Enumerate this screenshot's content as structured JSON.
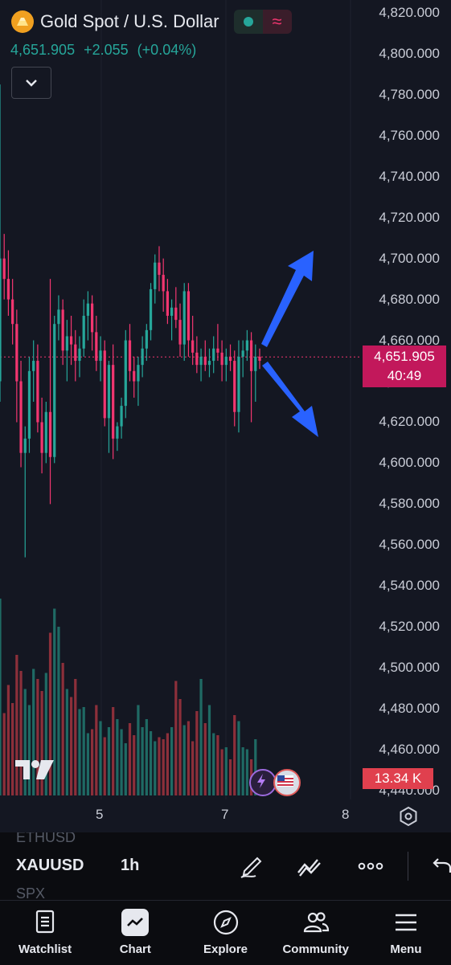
{
  "header": {
    "title": "Gold Spot / U.S. Dollar",
    "last_price": "4,651.905",
    "change": "+2.055",
    "change_pct": "(+0.04%)"
  },
  "price_axis": {
    "ticks": [
      "4,820.000",
      "4,800.000",
      "4,780.000",
      "4,760.000",
      "4,740.000",
      "4,720.000",
      "4,700.000",
      "4,680.000",
      "4,660.000",
      "4,640.000",
      "4,620.000",
      "4,600.000",
      "4,580.000",
      "4,560.000",
      "4,540.000",
      "4,520.000",
      "4,500.000",
      "4,480.000",
      "4,460.000",
      "4,440.000"
    ],
    "current_price": "4,651.905",
    "countdown": "40:49",
    "volume_label": "13.34 K"
  },
  "time_axis": {
    "ticks": [
      "5",
      "7",
      "8"
    ]
  },
  "toolbar": {
    "ghost_above": "ETHUSD",
    "symbol": "XAUUSD",
    "interval": "1h",
    "ghost_below": "SPX"
  },
  "nav": {
    "watchlist": "Watchlist",
    "chart": "Chart",
    "explore": "Explore",
    "community": "Community",
    "menu": "Menu"
  },
  "colors": {
    "up": "#26a69a",
    "down": "#f23670",
    "arrow": "#2962ff",
    "background": "#141722"
  },
  "chart_data": {
    "type": "candlestick",
    "ylim": [
      4440,
      4820
    ],
    "current_price": 4651.905,
    "candles": [
      {
        "o": 4640,
        "h": 4785,
        "l": 4630,
        "c": 4700
      },
      {
        "o": 4700,
        "h": 4712,
        "l": 4680,
        "c": 4690
      },
      {
        "o": 4690,
        "h": 4704,
        "l": 4672,
        "c": 4680
      },
      {
        "o": 4680,
        "h": 4690,
        "l": 4658,
        "c": 4668
      },
      {
        "o": 4668,
        "h": 4675,
        "l": 4620,
        "c": 4640
      },
      {
        "o": 4640,
        "h": 4650,
        "l": 4598,
        "c": 4605
      },
      {
        "o": 4605,
        "h": 4618,
        "l": 4554,
        "c": 4612
      },
      {
        "o": 4612,
        "h": 4652,
        "l": 4605,
        "c": 4645
      },
      {
        "o": 4645,
        "h": 4660,
        "l": 4630,
        "c": 4650
      },
      {
        "o": 4650,
        "h": 4658,
        "l": 4615,
        "c": 4620
      },
      {
        "o": 4620,
        "h": 4632,
        "l": 4595,
        "c": 4605
      },
      {
        "o": 4605,
        "h": 4630,
        "l": 4600,
        "c": 4625
      },
      {
        "o": 4625,
        "h": 4690,
        "l": 4580,
        "c": 4603
      },
      {
        "o": 4603,
        "h": 4672,
        "l": 4600,
        "c": 4668
      },
      {
        "o": 4668,
        "h": 4682,
        "l": 4660,
        "c": 4675
      },
      {
        "o": 4675,
        "h": 4680,
        "l": 4648,
        "c": 4655
      },
      {
        "o": 4655,
        "h": 4670,
        "l": 4640,
        "c": 4662
      },
      {
        "o": 4662,
        "h": 4672,
        "l": 4648,
        "c": 4658
      },
      {
        "o": 4658,
        "h": 4665,
        "l": 4640,
        "c": 4650
      },
      {
        "o": 4650,
        "h": 4662,
        "l": 4642,
        "c": 4656
      },
      {
        "o": 4656,
        "h": 4680,
        "l": 4652,
        "c": 4672
      },
      {
        "o": 4672,
        "h": 4684,
        "l": 4660,
        "c": 4678
      },
      {
        "o": 4678,
        "h": 4682,
        "l": 4655,
        "c": 4664
      },
      {
        "o": 4664,
        "h": 4672,
        "l": 4645,
        "c": 4650
      },
      {
        "o": 4650,
        "h": 4662,
        "l": 4640,
        "c": 4655
      },
      {
        "o": 4655,
        "h": 4660,
        "l": 4618,
        "c": 4622
      },
      {
        "o": 4622,
        "h": 4650,
        "l": 4605,
        "c": 4648
      },
      {
        "o": 4648,
        "h": 4658,
        "l": 4602,
        "c": 4612
      },
      {
        "o": 4612,
        "h": 4620,
        "l": 4606,
        "c": 4618
      },
      {
        "o": 4618,
        "h": 4632,
        "l": 4612,
        "c": 4628
      },
      {
        "o": 4628,
        "h": 4665,
        "l": 4622,
        "c": 4660
      },
      {
        "o": 4660,
        "h": 4668,
        "l": 4640,
        "c": 4645
      },
      {
        "o": 4645,
        "h": 4652,
        "l": 4632,
        "c": 4640
      },
      {
        "o": 4640,
        "h": 4652,
        "l": 4628,
        "c": 4648
      },
      {
        "o": 4648,
        "h": 4662,
        "l": 4642,
        "c": 4656
      },
      {
        "o": 4656,
        "h": 4668,
        "l": 4650,
        "c": 4665
      },
      {
        "o": 4665,
        "h": 4688,
        "l": 4660,
        "c": 4685
      },
      {
        "o": 4685,
        "h": 4702,
        "l": 4678,
        "c": 4698
      },
      {
        "o": 4698,
        "h": 4706,
        "l": 4684,
        "c": 4692
      },
      {
        "o": 4692,
        "h": 4700,
        "l": 4674,
        "c": 4684
      },
      {
        "o": 4684,
        "h": 4690,
        "l": 4668,
        "c": 4672
      },
      {
        "o": 4672,
        "h": 4680,
        "l": 4660,
        "c": 4676
      },
      {
        "o": 4676,
        "h": 4686,
        "l": 4666,
        "c": 4670
      },
      {
        "o": 4670,
        "h": 4678,
        "l": 4652,
        "c": 4658
      },
      {
        "o": 4658,
        "h": 4688,
        "l": 4650,
        "c": 4684
      },
      {
        "o": 4684,
        "h": 4688,
        "l": 4652,
        "c": 4660
      },
      {
        "o": 4660,
        "h": 4672,
        "l": 4648,
        "c": 4654
      },
      {
        "o": 4654,
        "h": 4662,
        "l": 4644,
        "c": 4648
      },
      {
        "o": 4648,
        "h": 4656,
        "l": 4640,
        "c": 4652
      },
      {
        "o": 4652,
        "h": 4660,
        "l": 4645,
        "c": 4648
      },
      {
        "o": 4648,
        "h": 4656,
        "l": 4642,
        "c": 4650
      },
      {
        "o": 4650,
        "h": 4662,
        "l": 4644,
        "c": 4656
      },
      {
        "o": 4656,
        "h": 4668,
        "l": 4650,
        "c": 4654
      },
      {
        "o": 4654,
        "h": 4660,
        "l": 4640,
        "c": 4648
      },
      {
        "o": 4648,
        "h": 4656,
        "l": 4640,
        "c": 4652
      },
      {
        "o": 4652,
        "h": 4658,
        "l": 4645,
        "c": 4650
      },
      {
        "o": 4650,
        "h": 4655,
        "l": 4618,
        "c": 4625
      },
      {
        "o": 4625,
        "h": 4660,
        "l": 4615,
        "c": 4652
      },
      {
        "o": 4652,
        "h": 4660,
        "l": 4642,
        "c": 4655
      },
      {
        "o": 4655,
        "h": 4665,
        "l": 4650,
        "c": 4660
      },
      {
        "o": 4660,
        "h": 4664,
        "l": 4620,
        "c": 4645
      },
      {
        "o": 4645,
        "h": 4658,
        "l": 4630,
        "c": 4652
      },
      {
        "o": 4652,
        "h": 4656,
        "l": 4646,
        "c": 4650
      }
    ],
    "volume_levels": [
      0.98,
      0.41,
      0.55,
      0.46,
      0.7,
      0.62,
      0.53,
      0.45,
      0.63,
      0.58,
      0.52,
      0.61,
      0.81,
      0.93,
      0.84,
      0.66,
      0.53,
      0.49,
      0.58,
      0.43,
      0.44,
      0.31,
      0.33,
      0.45,
      0.37,
      0.29,
      0.34,
      0.44,
      0.38,
      0.33,
      0.26,
      0.36,
      0.3,
      0.45,
      0.34,
      0.38,
      0.32,
      0.27,
      0.29,
      0.28,
      0.31,
      0.34,
      0.57,
      0.48,
      0.35,
      0.37,
      0.27,
      0.42,
      0.58,
      0.36,
      0.45,
      0.31,
      0.3,
      0.23,
      0.24,
      0.18,
      0.4,
      0.37,
      0.24,
      0.23,
      0.18,
      0.28,
      0.13
    ]
  }
}
